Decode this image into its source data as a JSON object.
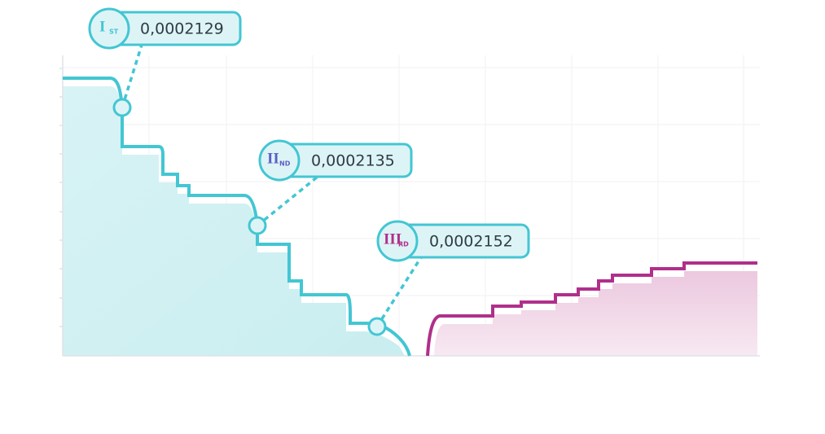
{
  "callouts": [
    {
      "numeral": "I",
      "suffix": "ST",
      "value": "0,0002129"
    },
    {
      "numeral": "II",
      "suffix": "ND",
      "value": "0,0002135"
    },
    {
      "numeral": "III",
      "suffix": "RD",
      "value": "0,0002152"
    }
  ]
}
